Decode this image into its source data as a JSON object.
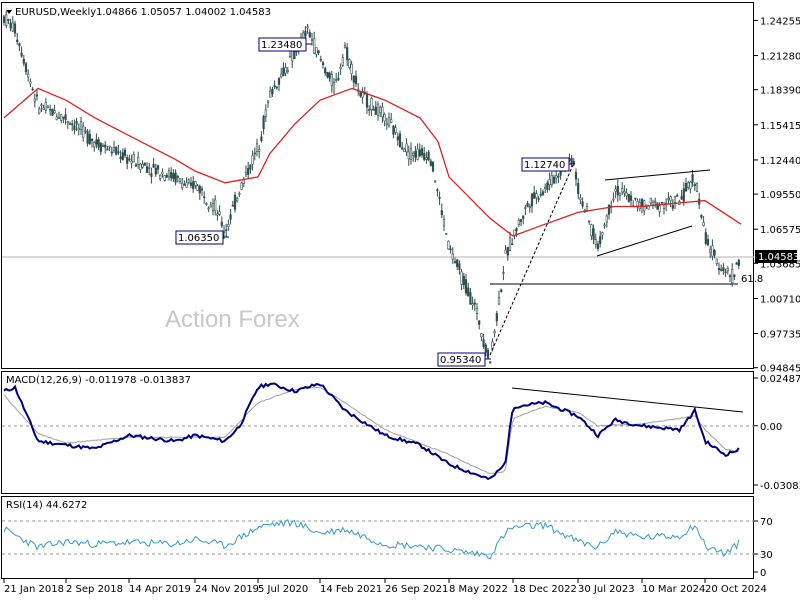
{
  "chart_data": [
    {
      "type": "candlestick",
      "title": "EURUSD,Weekly",
      "ohlc_header": "1.04866 1.05057 1.04002 1.04583",
      "watermark": "Action Forex",
      "ylim": [
        0.9482,
        1.2573
      ],
      "y_ticks": [
        "1.24255",
        "1.21280",
        "1.18390",
        "1.15415",
        "1.12440",
        "1.09550",
        "1.06575",
        "1.03685",
        "1.00710",
        "0.97735",
        "0.94845"
      ],
      "current_price": "1.04583",
      "x_labels": [
        "21 Jan 2018",
        "2 Sep 2018",
        "14 Apr 2019",
        "24 Nov 2019",
        "5 Jul 2020",
        "14 Feb 2021",
        "26 Sep 2021",
        "8 May 2022",
        "18 Dec 2022",
        "30 Jul 2023",
        "10 Mar 2024",
        "20 Oct 2024"
      ],
      "annotations": [
        "1.23480",
        "1.06350",
        "1.12740",
        "0.95340"
      ],
      "fib_label": "61.8",
      "price_path": [
        [
          "21 Jan 2018",
          1.245
        ],
        [
          "Mar 2018",
          1.235
        ],
        [
          "Jun 2018",
          1.17
        ],
        [
          "2 Sep 2018",
          1.16
        ],
        [
          "Dec 2018",
          1.14
        ],
        [
          "14 Apr 2019",
          1.125
        ],
        [
          "Aug 2019",
          1.11
        ],
        [
          "Oct 2019",
          1.1
        ],
        [
          "24 Nov 2019",
          1.105
        ],
        [
          "Feb 2020",
          1.085
        ],
        [
          "Mar 2020",
          1.0635
        ],
        [
          "May 2020",
          1.1
        ],
        [
          "5 Jul 2020",
          1.135
        ],
        [
          "Sep 2020",
          1.18
        ],
        [
          "Dec 2020",
          1.215
        ],
        [
          "Jan 2021",
          1.2348
        ],
        [
          "14 Feb 2021",
          1.21
        ],
        [
          "Apr 2021",
          1.185
        ],
        [
          "May 2021",
          1.22
        ],
        [
          "Jul 2021",
          1.18
        ],
        [
          "26 Sep 2021",
          1.16
        ],
        [
          "Nov 2021",
          1.13
        ],
        [
          "Feb 2022",
          1.13
        ],
        [
          "8 May 2022",
          1.05
        ],
        [
          "Aug 2022",
          1.0
        ],
        [
          "Sep 2022",
          0.9534
        ],
        [
          "Nov 2022",
          1.04
        ],
        [
          "18 Dec 2022",
          1.06
        ],
        [
          "Feb 2023",
          1.09
        ],
        [
          "Apr 2023",
          1.1
        ],
        [
          "Jul 2023",
          1.1274
        ],
        [
          "30 Jul 2023",
          1.1
        ],
        [
          "Oct 2023",
          1.05
        ],
        [
          "Dec 2023",
          1.1
        ],
        [
          "10 Mar 2024",
          1.085
        ],
        [
          "Jul 2024",
          1.09
        ],
        [
          "Sep 2024",
          1.11
        ],
        [
          "20 Oct 2024",
          1.06
        ],
        [
          "Nov 2024",
          1.04
        ],
        [
          "Jan 2025",
          1.025
        ],
        [
          "Feb 2025",
          1.04583
        ]
      ],
      "moving_average": [
        [
          "21 Jan 2018",
          1.16
        ],
        [
          "Jun 2018",
          1.185
        ],
        [
          "2 Sep 2018",
          1.175
        ],
        [
          "Dec 2018",
          1.16
        ],
        [
          "14 Apr 2019",
          1.145
        ],
        [
          "Aug 2019",
          1.125
        ],
        [
          "24 Nov 2019",
          1.115
        ],
        [
          "Mar 2020",
          1.105
        ],
        [
          "5 Jul 2020",
          1.11
        ],
        [
          "Sep 2020",
          1.13
        ],
        [
          "Dec 2020",
          1.155
        ],
        [
          "14 Feb 2021",
          1.175
        ],
        [
          "Jun 2021",
          1.185
        ],
        [
          "26 Sep 2021",
          1.175
        ],
        [
          "Dec 2021",
          1.16
        ],
        [
          "Mar 2022",
          1.14
        ],
        [
          "8 May 2022",
          1.11
        ],
        [
          "Sep 2022",
          1.075
        ],
        [
          "18 Dec 2022",
          1.06
        ],
        [
          "Apr 2023",
          1.07
        ],
        [
          "30 Jul 2023",
          1.08
        ],
        [
          "Dec 2023",
          1.085
        ],
        [
          "10 Mar 2024",
          1.085
        ],
        [
          "Jul 2024",
          1.088
        ],
        [
          "20 Oct 2024",
          1.09
        ],
        [
          "Feb 2025",
          1.07
        ]
      ],
      "colors": {
        "candles": "#2f4f4f",
        "moving_average": "#e02020",
        "annotation_box": "#000080"
      }
    },
    {
      "type": "line",
      "title": "MACD(12,26,9) -0.011978 -0.013837",
      "y_ticks": [
        "0.024871",
        "0.00",
        "-0.030836"
      ],
      "ylim": [
        -0.035,
        0.028
      ],
      "macd": [
        [
          "21 Jan 2018",
          0.018
        ],
        [
          "Mar 2018",
          0.02
        ],
        [
          "Jun 2018",
          -0.008
        ],
        [
          "2 Sep 2018",
          -0.01
        ],
        [
          "Dec 2018",
          -0.012
        ],
        [
          "14 Apr 2019",
          -0.005
        ],
        [
          "Aug 2019",
          -0.008
        ],
        [
          "24 Nov 2019",
          -0.005
        ],
        [
          "Mar 2020",
          -0.008
        ],
        [
          "May 2020",
          0.0
        ],
        [
          "5 Jul 2020",
          0.02
        ],
        [
          "Sep 2020",
          0.022
        ],
        [
          "Dec 2020",
          0.018
        ],
        [
          "14 Feb 2021",
          0.022
        ],
        [
          "May 2021",
          0.008
        ],
        [
          "26 Sep 2021",
          -0.005
        ],
        [
          "Dec 2021",
          -0.01
        ],
        [
          "8 May 2022",
          -0.02
        ],
        [
          "Sep 2022",
          -0.028
        ],
        [
          "Nov 2022",
          -0.02
        ],
        [
          "18 Dec 2022",
          0.01
        ],
        [
          "Apr 2023",
          0.012
        ],
        [
          "30 Jul 2023",
          0.005
        ],
        [
          "Oct 2023",
          -0.005
        ],
        [
          "Dec 2023",
          0.003
        ],
        [
          "10 Mar 2024",
          0.0
        ],
        [
          "Jul 2024",
          -0.002
        ],
        [
          "Sep 2024",
          0.008
        ],
        [
          "20 Oct 2024",
          -0.008
        ],
        [
          "Dec 2024",
          -0.015
        ],
        [
          "Feb 2025",
          -0.011978
        ]
      ],
      "signal": [
        [
          "21 Jan 2018",
          0.016
        ],
        [
          "Jun 2018",
          -0.004
        ],
        [
          "2 Sep 2018",
          -0.009
        ],
        [
          "14 Apr 2019",
          -0.006
        ],
        [
          "24 Nov 2019",
          -0.006
        ],
        [
          "Mar 2020",
          -0.006
        ],
        [
          "5 Jul 2020",
          0.012
        ],
        [
          "Dec 2020",
          0.019
        ],
        [
          "14 Feb 2021",
          0.02
        ],
        [
          "May 2021",
          0.012
        ],
        [
          "26 Sep 2021",
          -0.002
        ],
        [
          "8 May 2022",
          -0.015
        ],
        [
          "Sep 2022",
          -0.025
        ],
        [
          "Nov 2022",
          -0.024
        ],
        [
          "18 Dec 2022",
          0.004
        ],
        [
          "Apr 2023",
          0.01
        ],
        [
          "30 Jul 2023",
          0.007
        ],
        [
          "Oct 2023",
          0.0
        ],
        [
          "10 Mar 2024",
          0.001
        ],
        [
          "Sep 2024",
          0.005
        ],
        [
          "20 Oct 2024",
          -0.002
        ],
        [
          "Dec 2024",
          -0.012
        ],
        [
          "Feb 2025",
          -0.013837
        ]
      ],
      "colors": {
        "macd": "#000080",
        "signal": "#a0a0a0"
      }
    },
    {
      "type": "line",
      "title": "RSI(14) 44.6272",
      "y_ticks": [
        "70",
        "30",
        "0"
      ],
      "ylim": [
        0,
        100
      ],
      "rsi": [
        [
          "21 Jan 2018",
          60
        ],
        [
          "Jun 2018",
          38
        ],
        [
          "2 Sep 2018",
          45
        ],
        [
          "Dec 2018",
          42
        ],
        [
          "14 Apr 2019",
          44
        ],
        [
          "Aug 2019",
          42
        ],
        [
          "24 Nov 2019",
          48
        ],
        [
          "Mar 2020",
          40
        ],
        [
          "5 Jul 2020",
          62
        ],
        [
          "Sep 2020",
          66
        ],
        [
          "Dec 2020",
          68
        ],
        [
          "14 Feb 2021",
          55
        ],
        [
          "May 2021",
          60
        ],
        [
          "26 Sep 2021",
          42
        ],
        [
          "Dec 2021",
          40
        ],
        [
          "8 May 2022",
          35
        ],
        [
          "Sep 2022",
          28
        ],
        [
          "Nov 2022",
          55
        ],
        [
          "18 Dec 2022",
          62
        ],
        [
          "Apr 2023",
          65
        ],
        [
          "30 Jul 2023",
          45
        ],
        [
          "Oct 2023",
          38
        ],
        [
          "Dec 2023",
          58
        ],
        [
          "10 Mar 2024",
          50
        ],
        [
          "Jul 2024",
          52
        ],
        [
          "Sep 2024",
          66
        ],
        [
          "20 Oct 2024",
          40
        ],
        [
          "Dec 2024",
          30
        ],
        [
          "Feb 2025",
          44.6272
        ]
      ],
      "colors": {
        "rsi": "#3399cc"
      }
    }
  ]
}
